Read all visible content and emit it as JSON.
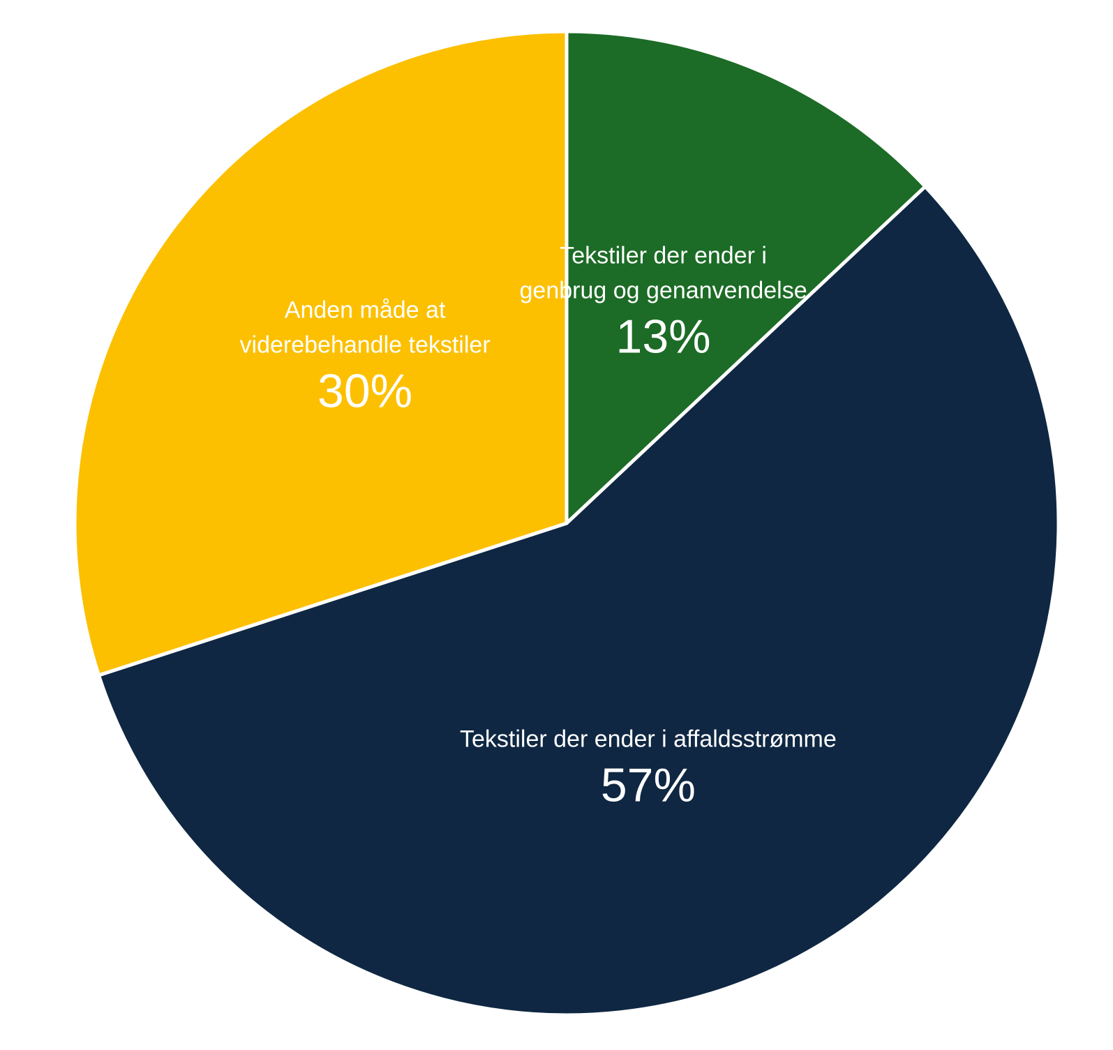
{
  "chart_data": {
    "type": "pie",
    "title": "",
    "slices": [
      {
        "label_lines": [
          "Tekstiler der ender i",
          "genbrug og genanvendelse"
        ],
        "value": 13,
        "value_label": "13%",
        "color": "#1c6b26"
      },
      {
        "label_lines": [
          "Tekstiler der ender i affaldsstrømme"
        ],
        "value": 57,
        "value_label": "57%",
        "color": "#0f2742"
      },
      {
        "label_lines": [
          "Anden måde at",
          "viderebehandle tekstiler"
        ],
        "value": 30,
        "value_label": "30%",
        "color": "#fcc000"
      }
    ],
    "start": "12 o'clock",
    "direction": "clockwise",
    "legend": "none"
  }
}
